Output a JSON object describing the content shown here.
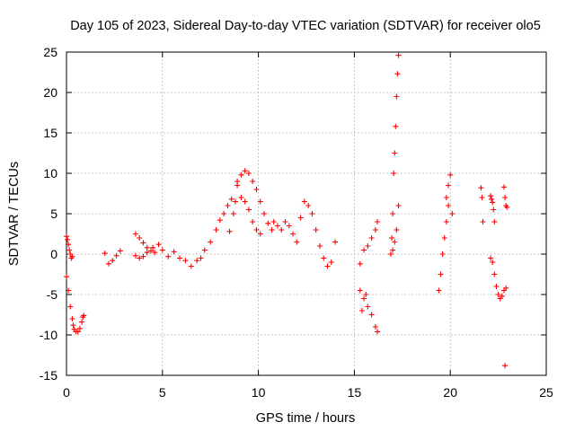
{
  "chart_data": {
    "type": "scatter",
    "title": "Day 105 of 2023, Sidereal Day-to-day VTEC variation (SDTVAR) for receiver olo5",
    "xlabel": "GPS time / hours",
    "ylabel": "SDTVAR / TECUs",
    "xlim": [
      0,
      25
    ],
    "ylim": [
      -15,
      25
    ],
    "xticks": [
      0,
      5,
      10,
      15,
      20,
      25
    ],
    "yticks": [
      -15,
      -10,
      -5,
      0,
      5,
      10,
      15,
      20,
      25
    ],
    "xtick_labels": [
      "0",
      "5",
      "10",
      "15",
      "20",
      "25"
    ],
    "ytick_labels": [
      "-15",
      "-10",
      "-5",
      "0",
      "5",
      "10",
      "15",
      "20",
      "25"
    ],
    "grid": true,
    "marker": "+",
    "color": "#ff0000",
    "series": [
      {
        "name": "seg1",
        "x": [
          0.0,
          0.05,
          0.1,
          0.15,
          0.2,
          0.25,
          0.3
        ],
        "y": [
          2.2,
          1.8,
          1.2,
          0.5,
          0.0,
          -0.5,
          -0.3
        ]
      },
      {
        "name": "seg2",
        "x": [
          0.0,
          0.1,
          0.2,
          0.3,
          0.35,
          0.4,
          0.5,
          0.6,
          0.7,
          0.8,
          0.85,
          0.9
        ],
        "y": [
          -2.8,
          -4.5,
          -6.5,
          -8.0,
          -8.8,
          -9.3,
          -9.6,
          -9.6,
          -9.2,
          -8.4,
          -7.8,
          -7.6
        ]
      },
      {
        "name": "seg3",
        "x": [
          2.0,
          2.2,
          2.4,
          2.6,
          2.8
        ],
        "y": [
          0.1,
          -1.2,
          -0.8,
          -0.2,
          0.4
        ]
      },
      {
        "name": "seg4",
        "x": [
          3.6,
          3.8,
          4.0,
          4.2,
          4.5,
          4.8,
          5.0,
          5.3,
          5.6,
          5.9,
          6.2,
          6.5,
          6.8,
          7.0,
          7.2,
          7.5,
          7.8,
          8.0,
          8.2,
          8.4,
          8.6,
          8.8
        ],
        "y": [
          -0.2,
          -0.5,
          -0.3,
          0.2,
          0.8,
          1.2,
          0.5,
          -0.3,
          0.3,
          -0.5,
          -0.8,
          -1.5,
          -0.8,
          -0.5,
          0.5,
          1.5,
          3.0,
          4.2,
          5.0,
          6.0,
          6.8,
          6.5
        ]
      },
      {
        "name": "seg5",
        "x": [
          3.6,
          3.8,
          4.0,
          4.2,
          4.4,
          4.6
        ],
        "y": [
          2.5,
          2.0,
          1.4,
          0.8,
          0.4,
          0.2
        ]
      },
      {
        "name": "seg6",
        "x": [
          8.5,
          8.7,
          8.9,
          9.1,
          9.3,
          9.5,
          9.7,
          9.9,
          10.1,
          10.3,
          10.5,
          10.7
        ],
        "y": [
          2.8,
          5.0,
          9.0,
          9.8,
          10.3,
          10.0,
          9.0,
          8.0,
          6.5,
          5.0,
          3.8,
          3.0
        ]
      },
      {
        "name": "seg7",
        "x": [
          8.9,
          9.1,
          9.3,
          9.5,
          9.7,
          9.9,
          10.1
        ],
        "y": [
          8.5,
          7.0,
          6.5,
          5.5,
          4.0,
          3.0,
          2.5
        ]
      },
      {
        "name": "seg8",
        "x": [
          10.8,
          11.0,
          11.2,
          11.4,
          11.6,
          11.8,
          12.0,
          12.2,
          12.4,
          12.6,
          12.8,
          13.0,
          13.2,
          13.4,
          13.6,
          13.8,
          14.0
        ],
        "y": [
          4.0,
          3.5,
          3.0,
          4.0,
          3.5,
          2.5,
          1.5,
          4.5,
          6.5,
          6.0,
          5.0,
          3.0,
          1.0,
          -0.5,
          -1.5,
          -1.0,
          1.5
        ]
      },
      {
        "name": "seg9",
        "x": [
          15.3,
          15.5,
          15.7,
          15.9,
          16.1,
          16.2
        ],
        "y": [
          -1.2,
          0.5,
          1.0,
          2.0,
          3.0,
          4.0
        ]
      },
      {
        "name": "seg10",
        "x": [
          15.3,
          15.5,
          15.7,
          15.9,
          16.1,
          16.2
        ],
        "y": [
          -4.5,
          -5.5,
          -6.5,
          -7.5,
          -9.0,
          -9.6
        ]
      },
      {
        "name": "seg11",
        "x": [
          15.4,
          15.6
        ],
        "y": [
          -7.0,
          -5.0
        ]
      },
      {
        "name": "seg12",
        "x": [
          16.9,
          16.95,
          17.0,
          17.05,
          17.1,
          17.15,
          17.2,
          17.25,
          17.3
        ],
        "y": [
          0.0,
          2.0,
          5.0,
          10.0,
          12.5,
          15.8,
          19.5,
          22.3,
          24.6
        ]
      },
      {
        "name": "seg13",
        "x": [
          17.0,
          17.1,
          17.2,
          17.3
        ],
        "y": [
          0.5,
          1.5,
          3.0,
          6.0
        ]
      },
      {
        "name": "seg14",
        "x": [
          19.4,
          19.5,
          19.6,
          19.7,
          19.8,
          19.9
        ],
        "y": [
          -4.5,
          -2.5,
          0.0,
          2.0,
          4.0,
          6.0
        ]
      },
      {
        "name": "seg15",
        "x": [
          19.8,
          19.9,
          20.0,
          20.1
        ],
        "y": [
          7.0,
          8.5,
          9.8,
          5.0
        ]
      },
      {
        "name": "seg16",
        "x": [
          21.6,
          21.65,
          21.7
        ],
        "y": [
          8.2,
          7.0,
          4.0
        ]
      },
      {
        "name": "seg17",
        "x": [
          22.1,
          22.15,
          22.2,
          22.25,
          22.3
        ],
        "y": [
          7.2,
          6.8,
          6.4,
          5.5,
          4.0
        ]
      },
      {
        "name": "seg18",
        "x": [
          22.1,
          22.2,
          22.3,
          22.4,
          22.5,
          22.6,
          22.7,
          22.8,
          22.9
        ],
        "y": [
          -0.5,
          -1.0,
          -2.5,
          -4.0,
          -5.0,
          -5.5,
          -5.2,
          -4.5,
          -4.2
        ]
      },
      {
        "name": "seg19",
        "x": [
          22.8,
          22.85,
          22.9,
          22.95
        ],
        "y": [
          8.3,
          7.0,
          6.0,
          5.8
        ]
      },
      {
        "name": "seg20",
        "x": [
          22.85
        ],
        "y": [
          -13.8
        ]
      }
    ]
  }
}
